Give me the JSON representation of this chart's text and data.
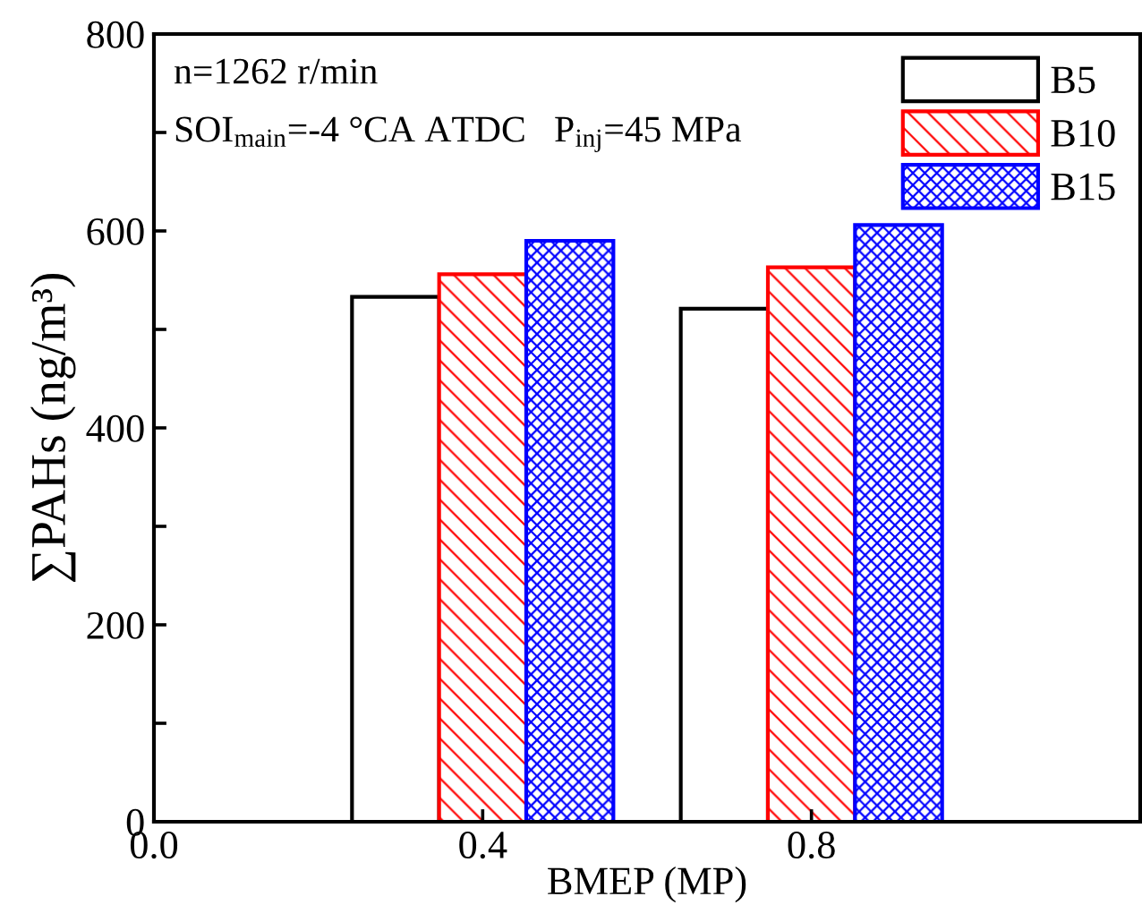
{
  "chart_data": {
    "type": "bar",
    "xlabel": "BMEP (MP)",
    "ylabel": "∑PAHs (ng/m³)",
    "annotations": [
      "n=1262 r/min",
      "SOI$_{main}$=-4 °CA ATDC   P$_{inj}$=45 MPa"
    ],
    "x": [
      0.4,
      0.8
    ],
    "series": [
      {
        "name": "B5",
        "color": "#000000",
        "values": [
          533,
          521
        ]
      },
      {
        "name": "B10",
        "color": "#ff0000",
        "values": [
          556,
          563
        ]
      },
      {
        "name": "B15",
        "color": "#0000ff",
        "values": [
          590,
          606
        ]
      }
    ],
    "xlim": [
      0,
      1.2
    ],
    "xticks": [
      {
        "value": 0,
        "label": "0.0"
      },
      0.4,
      0.8
    ],
    "ylim": [
      0,
      800
    ],
    "yticks": [
      0,
      {
        "value": 100,
        "label": null
      },
      200,
      {
        "value": 300,
        "label": null
      },
      400,
      {
        "value": 500,
        "label": null
      },
      600,
      {
        "value": 700,
        "label": null
      },
      800
    ],
    "grid": false,
    "legend": "top right"
  }
}
